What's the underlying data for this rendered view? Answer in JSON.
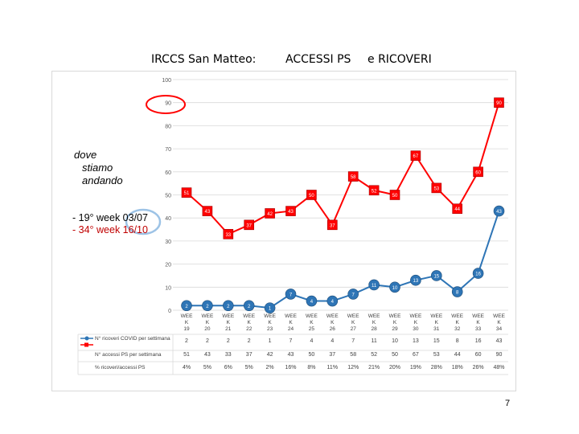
{
  "titles": {
    "part1": "IRCCS San Matteo:",
    "part2": "ACCESSI PS",
    "part3": "e  RICOVERI"
  },
  "notes": {
    "where_line1": "dove",
    "where_line2": "stiamo",
    "where_line3": "andando",
    "week1": "- 19° week 03/07",
    "week2": "- 34° week 16/10"
  },
  "page_number": "7",
  "colors": {
    "ricoveri": "#2e75b6",
    "accessi": "#ff0000",
    "highlight_red": "#ff0000",
    "highlight_blue": "#9dc3e6",
    "grid": "#d9d9d9"
  },
  "chart_data": {
    "type": "line",
    "y_axis_ticks": [
      "100",
      "90",
      "80",
      "70",
      "60",
      "50",
      "40",
      "30",
      "20",
      "10",
      "0"
    ],
    "ylim": [
      0,
      100
    ],
    "grid": true,
    "categories": [
      "WEEK 19",
      "WEEK 20",
      "WEEK 21",
      "WEEK 22",
      "WEEK 23",
      "WEEK 24",
      "WEEK 25",
      "WEEK 26",
      "WEEK 27",
      "WEEK 28",
      "WEEK 29",
      "WEEK 30",
      "WEEK 31",
      "WEEK 32",
      "WEEK 33",
      "WEEK 34"
    ],
    "series": [
      {
        "name": "N° ricoveri COVID per settimana",
        "color": "#2e75b6",
        "values": [
          2,
          2,
          2,
          2,
          1,
          7,
          4,
          4,
          7,
          11,
          10,
          13,
          15,
          8,
          16,
          43
        ],
        "row_labels": [
          "2",
          "2",
          "2",
          "2",
          "1",
          "7",
          "4",
          "4",
          "7",
          "11",
          "10",
          "13",
          "15",
          "8",
          "16",
          "43"
        ]
      },
      {
        "name": "N° accessi PS per settimana",
        "color": "#ff0000",
        "values": [
          51,
          43,
          33,
          37,
          42,
          43,
          50,
          37,
          58,
          52,
          50,
          67,
          53,
          44,
          60,
          90
        ],
        "row_labels": [
          "51",
          "43",
          "33",
          "37",
          "42",
          "43",
          "50",
          "37",
          "58",
          "52",
          "50",
          "67",
          "53",
          "44",
          "60",
          "90"
        ]
      },
      {
        "name": "% ricoveri/accessi PS",
        "values": [
          4,
          5,
          6,
          5,
          2,
          16,
          8,
          11,
          12,
          21,
          20,
          19,
          28,
          18,
          26,
          48
        ],
        "row_labels": [
          "4%",
          "5%",
          "6%",
          "5%",
          "2%",
          "16%",
          "8%",
          "11%",
          "12%",
          "21%",
          "20%",
          "19%",
          "28%",
          "18%",
          "26%",
          "48%"
        ]
      }
    ]
  }
}
